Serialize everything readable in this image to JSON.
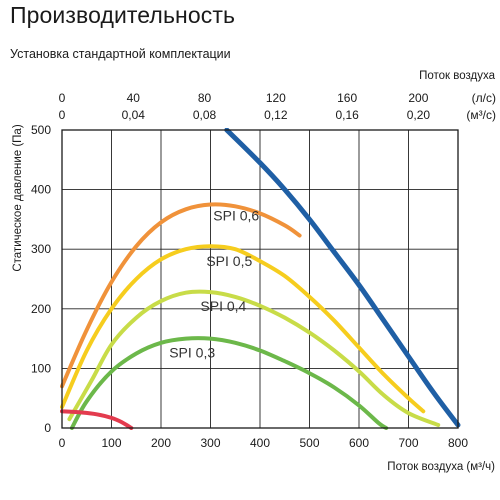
{
  "title": "Производительность",
  "subtitle": "Установка стандартной комплектации",
  "chart_data": {
    "type": "line",
    "title": "Производительность",
    "subtitle": "Установка стандартной комплектации",
    "xlabel": "Поток воздуха (м³/ч)",
    "ylabel": "Статическое давление (Па)",
    "xlim": [
      0,
      800
    ],
    "ylim": [
      0,
      500
    ],
    "x_ticks": [
      "0",
      "100",
      "200",
      "300",
      "400",
      "500",
      "600",
      "700",
      "800"
    ],
    "y_ticks": [
      "0",
      "100",
      "200",
      "300",
      "400",
      "500"
    ],
    "top_axis_title": "Поток воздуха",
    "top_axis_ls": {
      "unit": "(л/с)",
      "ticks": [
        {
          "value": 0,
          "label": "0"
        },
        {
          "value": 40,
          "label": "40"
        },
        {
          "value": 80,
          "label": "80"
        },
        {
          "value": 120,
          "label": "120"
        },
        {
          "value": 160,
          "label": "160"
        },
        {
          "value": 200,
          "label": "200"
        }
      ]
    },
    "top_axis_m3s": {
      "unit": "(м³/с)",
      "ticks": [
        {
          "value": 0,
          "label": "0"
        },
        {
          "value": 0.04,
          "label": "0,04"
        },
        {
          "value": 0.08,
          "label": "0,08"
        },
        {
          "value": 0.12,
          "label": "0,12"
        },
        {
          "value": 0.16,
          "label": "0,16"
        },
        {
          "value": 0.2,
          "label": "0,20"
        }
      ]
    },
    "grid": true,
    "series": [
      {
        "name": "SPI 0,6",
        "color": "#f0923a",
        "points": [
          [
            0,
            70
          ],
          [
            50,
            165
          ],
          [
            100,
            245
          ],
          [
            150,
            305
          ],
          [
            200,
            345
          ],
          [
            250,
            367
          ],
          [
            300,
            375
          ],
          [
            350,
            372
          ],
          [
            400,
            360
          ],
          [
            450,
            340
          ],
          [
            480,
            323
          ]
        ]
      },
      {
        "name": "SPI 0,5",
        "color": "#f6cd1e",
        "points": [
          [
            0,
            35
          ],
          [
            50,
            130
          ],
          [
            100,
            200
          ],
          [
            150,
            250
          ],
          [
            200,
            283
          ],
          [
            250,
            300
          ],
          [
            300,
            305
          ],
          [
            350,
            300
          ],
          [
            400,
            280
          ],
          [
            450,
            255
          ],
          [
            500,
            220
          ],
          [
            550,
            180
          ],
          [
            600,
            135
          ],
          [
            650,
            90
          ],
          [
            700,
            50
          ],
          [
            730,
            28
          ]
        ]
      },
      {
        "name": "SPI 0,4",
        "color": "#c8dc48",
        "points": [
          [
            15,
            15
          ],
          [
            60,
            80
          ],
          [
            100,
            140
          ],
          [
            150,
            185
          ],
          [
            200,
            213
          ],
          [
            250,
            227
          ],
          [
            300,
            228
          ],
          [
            350,
            220
          ],
          [
            400,
            205
          ],
          [
            450,
            185
          ],
          [
            500,
            160
          ],
          [
            550,
            130
          ],
          [
            600,
            95
          ],
          [
            650,
            55
          ],
          [
            700,
            25
          ],
          [
            760,
            5
          ]
        ]
      },
      {
        "name": "SPI 0,3",
        "color": "#6cb84a",
        "points": [
          [
            20,
            0
          ],
          [
            50,
            45
          ],
          [
            100,
            95
          ],
          [
            150,
            125
          ],
          [
            200,
            143
          ],
          [
            250,
            150
          ],
          [
            300,
            150
          ],
          [
            350,
            143
          ],
          [
            400,
            130
          ],
          [
            450,
            112
          ],
          [
            500,
            92
          ],
          [
            550,
            68
          ],
          [
            600,
            38
          ],
          [
            640,
            8
          ],
          [
            655,
            0
          ]
        ]
      },
      {
        "name": "",
        "color": "#e33b4e",
        "points": [
          [
            0,
            28
          ],
          [
            40,
            26
          ],
          [
            70,
            23
          ],
          [
            100,
            17
          ],
          [
            120,
            10
          ],
          [
            140,
            0
          ]
        ]
      },
      {
        "name": "",
        "color": "#1f5fa5",
        "points": [
          [
            333,
            500
          ],
          [
            400,
            445
          ],
          [
            450,
            400
          ],
          [
            500,
            350
          ],
          [
            550,
            295
          ],
          [
            600,
            240
          ],
          [
            650,
            180
          ],
          [
            700,
            120
          ],
          [
            750,
            60
          ],
          [
            800,
            5
          ]
        ]
      }
    ],
    "spi_labels": [
      {
        "name": "SPI 0,6",
        "x": 352,
        "y": 348
      },
      {
        "name": "SPI 0,5",
        "x": 338,
        "y": 272
      },
      {
        "name": "SPI 0,4",
        "x": 326,
        "y": 196
      },
      {
        "name": "SPI 0,3",
        "x": 263,
        "y": 118
      }
    ]
  }
}
